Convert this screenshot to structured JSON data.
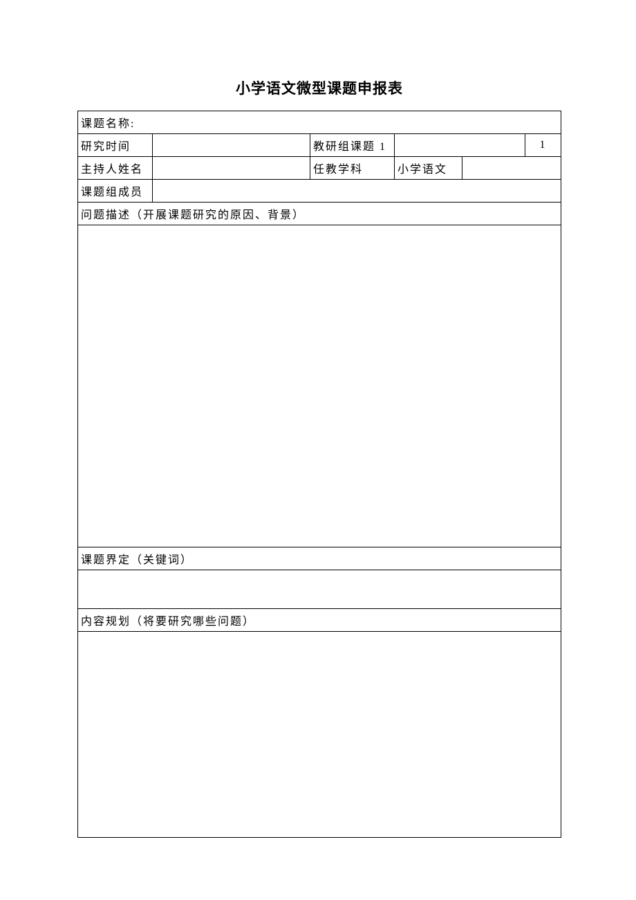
{
  "document": {
    "title": "小学语文微型课题申报表",
    "background_color": "#ffffff",
    "text_color": "#000000",
    "border_color": "#000000",
    "title_fontsize": 21,
    "body_fontsize": 16,
    "font_family": "SimSun"
  },
  "form": {
    "row1": {
      "label": "课题名称:",
      "value": ""
    },
    "row2": {
      "label1": "研究时间",
      "value1": "",
      "label2": "教研组课题 1",
      "value2": "",
      "label3": "1"
    },
    "row3": {
      "label1": "主持人姓名",
      "value1": "",
      "label2": "任教学科",
      "value2": "小学语文",
      "value3": ""
    },
    "row4": {
      "label": "课题组成员",
      "value": ""
    },
    "row5": {
      "label": "问题描述（开展课题研究的原因、背景）"
    },
    "row6": {
      "content": ""
    },
    "row7": {
      "label": "课题界定（关键词）"
    },
    "row8": {
      "content": ""
    },
    "row9": {
      "label": "内容规划（将要研究哪些问题）"
    },
    "row10": {
      "content": ""
    }
  }
}
